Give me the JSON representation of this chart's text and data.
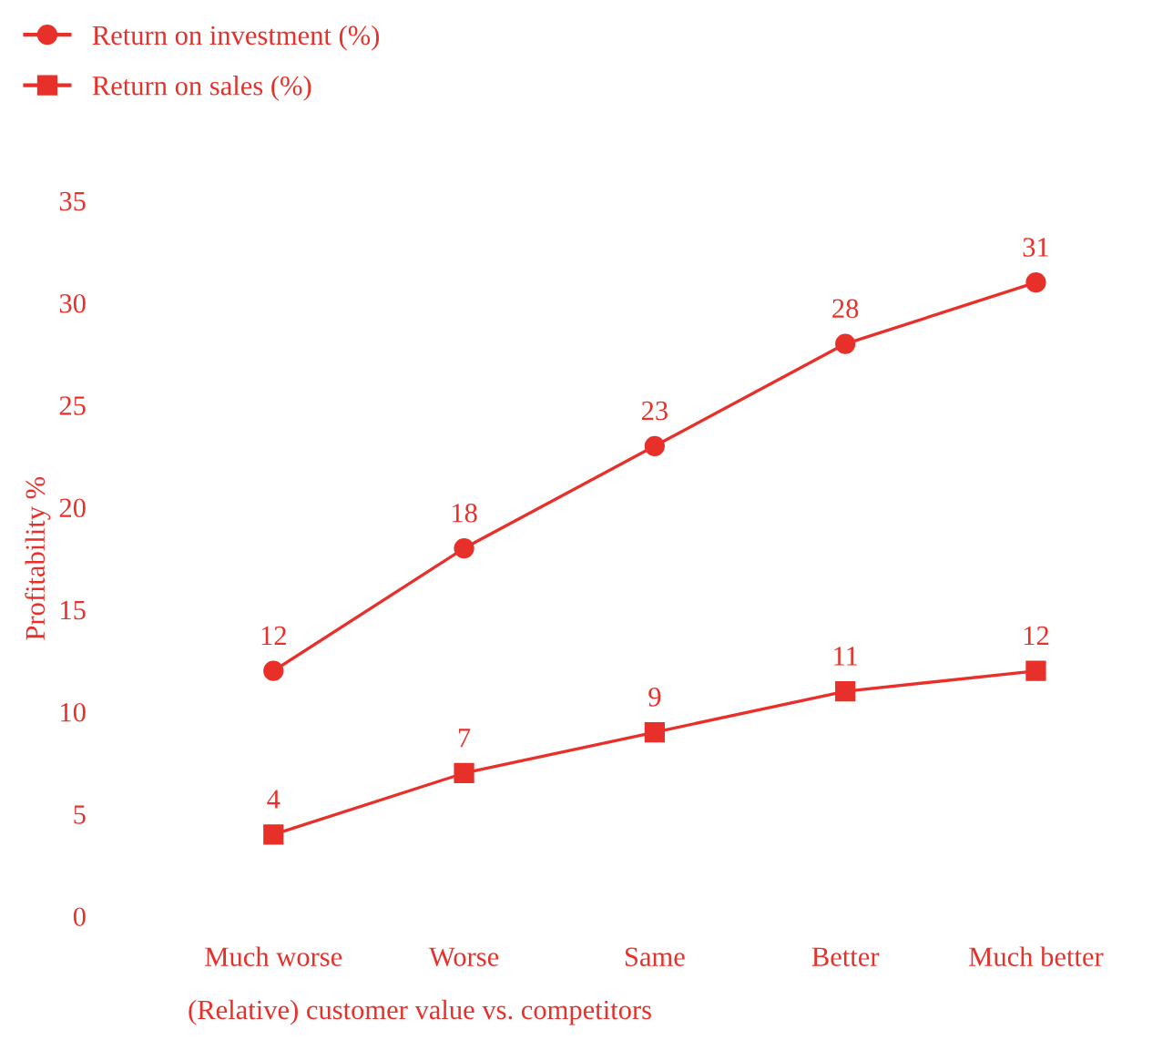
{
  "chart_data": {
    "type": "line",
    "xlabel": "(Relative) customer value vs. competitors",
    "ylabel": "Profitability %",
    "categories": [
      "Much worse",
      "Worse",
      "Same",
      "Better",
      "Much better"
    ],
    "series": [
      {
        "name": "Return on investment (%)",
        "color": "#e8302a",
        "marker": "circle",
        "values": [
          12,
          18,
          23,
          28,
          31
        ]
      },
      {
        "name": "Return on sales (%)",
        "color": "#e8302a",
        "marker": "square",
        "values": [
          4,
          7,
          9,
          11,
          12
        ]
      }
    ],
    "ylim": [
      0,
      35
    ],
    "yticks": [
      0,
      5,
      10,
      15,
      20,
      25,
      30,
      35
    ],
    "grid": false,
    "legend": "top left",
    "data_labels": true,
    "line_style": "solid"
  }
}
